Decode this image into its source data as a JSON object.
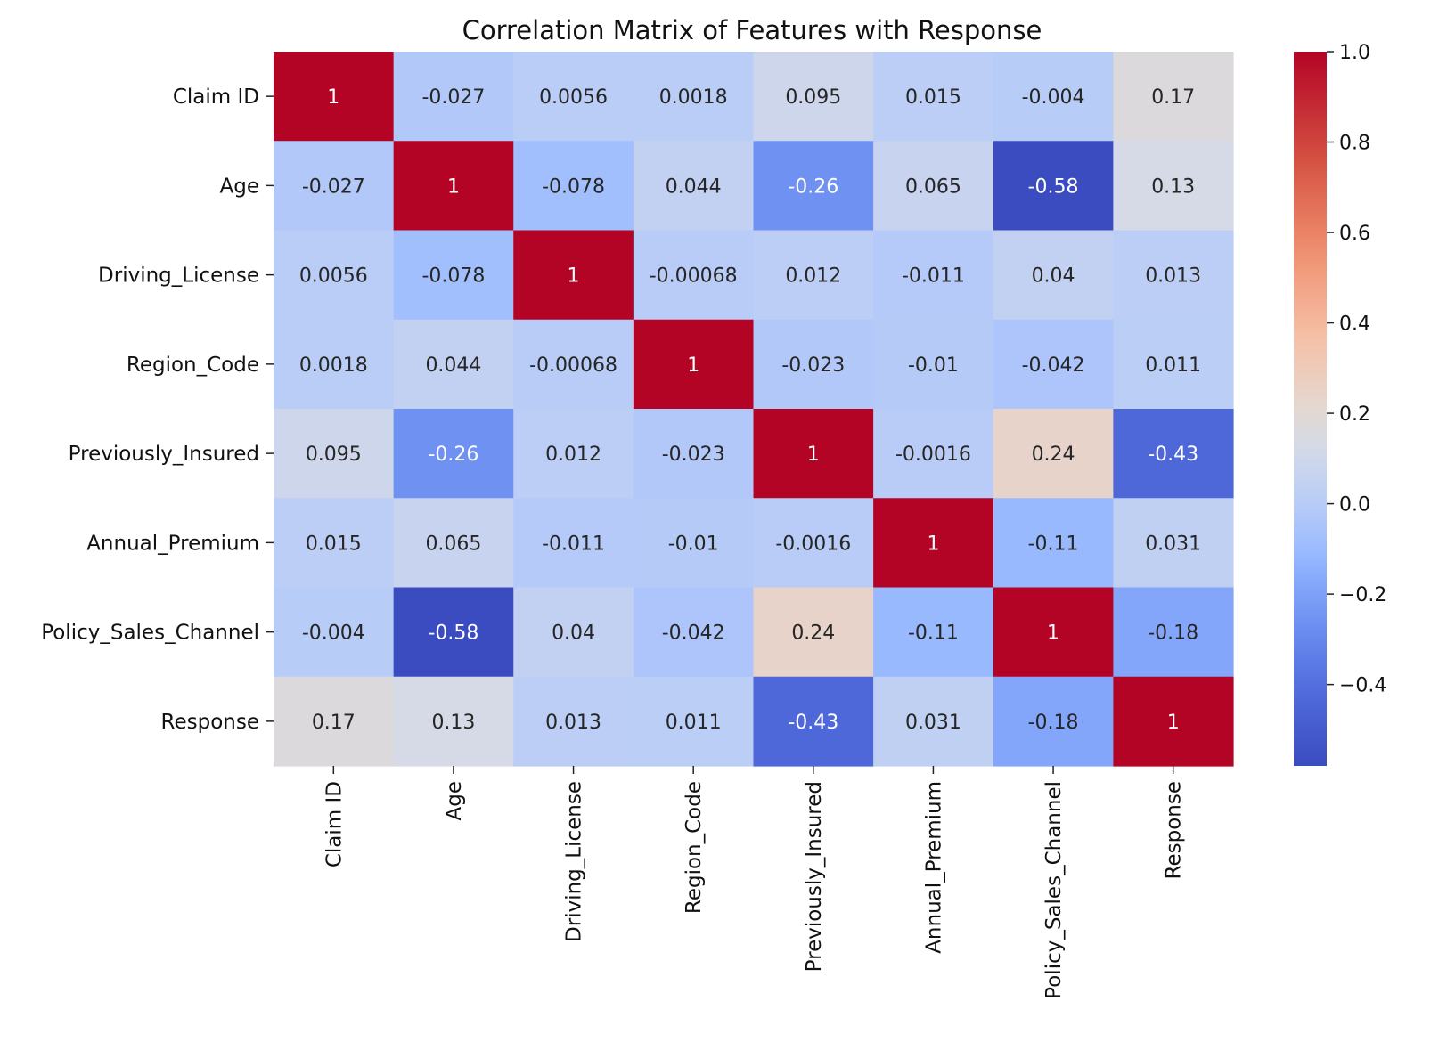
{
  "chart_data": {
    "type": "heatmap",
    "title": "Correlation Matrix of Features with Response",
    "xlabel": "",
    "ylabel": "",
    "rows": [
      "Claim ID",
      "Age",
      "Driving_License",
      "Region_Code",
      "Previously_Insured",
      "Annual_Premium",
      "Policy_Sales_Channel",
      "Response"
    ],
    "columns": [
      "Claim ID",
      "Age",
      "Driving_License",
      "Region_Code",
      "Previously_Insured",
      "Annual_Premium",
      "Policy_Sales_Channel",
      "Response"
    ],
    "values": [
      [
        1,
        -0.027,
        0.0056,
        0.0018,
        0.095,
        0.015,
        -0.004,
        0.17
      ],
      [
        -0.027,
        1,
        -0.078,
        0.044,
        -0.26,
        0.065,
        -0.58,
        0.13
      ],
      [
        0.0056,
        -0.078,
        1,
        -0.00068,
        0.012,
        -0.011,
        0.04,
        0.013
      ],
      [
        0.0018,
        0.044,
        -0.00068,
        1,
        -0.023,
        -0.01,
        -0.042,
        0.011
      ],
      [
        0.095,
        -0.26,
        0.012,
        -0.023,
        1,
        -0.0016,
        0.24,
        -0.43
      ],
      [
        0.015,
        0.065,
        -0.011,
        -0.01,
        -0.0016,
        1,
        -0.11,
        0.031
      ],
      [
        -0.004,
        -0.58,
        0.04,
        -0.042,
        0.24,
        -0.11,
        1,
        -0.18
      ],
      [
        0.17,
        0.13,
        0.013,
        0.011,
        -0.43,
        0.031,
        -0.18,
        1
      ]
    ],
    "annotations": [
      [
        "1",
        "-0.027",
        "0.0056",
        "0.0018",
        "0.095",
        "0.015",
        "-0.004",
        "0.17"
      ],
      [
        "-0.027",
        "1",
        "-0.078",
        "0.044",
        "-0.26",
        "0.065",
        "-0.58",
        "0.13"
      ],
      [
        "0.0056",
        "-0.078",
        "1",
        "-0.00068",
        "0.012",
        "-0.011",
        "0.04",
        "0.013"
      ],
      [
        "0.0018",
        "0.044",
        "-0.00068",
        "1",
        "-0.023",
        "-0.01",
        "-0.042",
        "0.011"
      ],
      [
        "0.095",
        "-0.26",
        "0.012",
        "-0.023",
        "1",
        "-0.0016",
        "0.24",
        "-0.43"
      ],
      [
        "0.015",
        "0.065",
        "-0.011",
        "-0.01",
        "-0.0016",
        "1",
        "-0.11",
        "0.031"
      ],
      [
        "-0.004",
        "-0.58",
        "0.04",
        "-0.042",
        "0.24",
        "-0.11",
        "1",
        "-0.18"
      ],
      [
        "0.17",
        "0.13",
        "0.013",
        "0.011",
        "-0.43",
        "0.031",
        "-0.18",
        "1"
      ]
    ],
    "colormap": "coolwarm",
    "vmin": -0.58,
    "vmax": 1.0,
    "colorbar": {
      "ticks": [
        1.0,
        0.8,
        0.6,
        0.4,
        0.2,
        0.0,
        -0.2,
        -0.4
      ],
      "tick_labels": [
        "1.0",
        "0.8",
        "0.6",
        "0.4",
        "0.2",
        "0.0",
        "−0.2",
        "−0.4"
      ]
    },
    "grid": false
  }
}
